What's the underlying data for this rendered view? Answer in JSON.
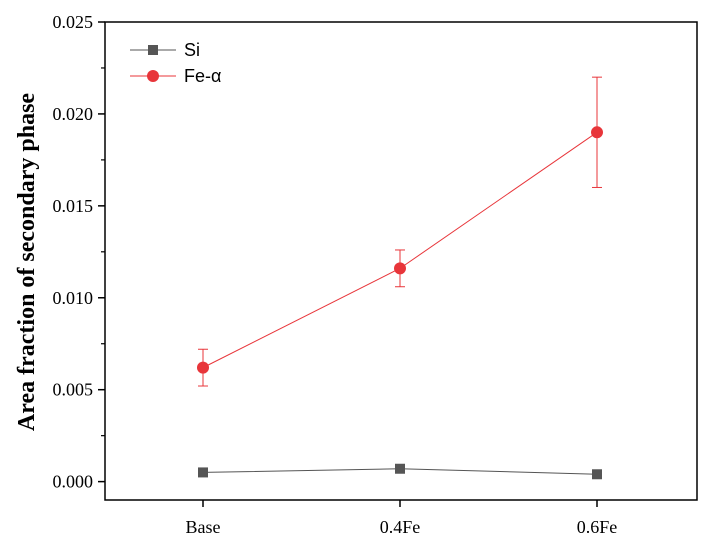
{
  "chart_data": {
    "type": "line",
    "categories": [
      "Base",
      "0.4Fe",
      "0.6Fe"
    ],
    "series": [
      {
        "name": "Si",
        "values": [
          0.0005,
          0.0007,
          0.0004
        ],
        "color": "#555555",
        "marker": "square"
      },
      {
        "name": "Fe-α",
        "values": [
          0.0062,
          0.0116,
          0.019
        ],
        "errors": [
          0.001,
          0.001,
          0.003
        ],
        "color": "#e8353a",
        "marker": "circle"
      }
    ],
    "title": "",
    "xlabel": "",
    "ylabel": "Area fraction of secondary phase",
    "ylim": [
      -0.001,
      0.025
    ],
    "yticks": [
      "0.000",
      "0.005",
      "0.010",
      "0.015",
      "0.020",
      "0.025"
    ],
    "legend": "top-left",
    "grid": false
  }
}
